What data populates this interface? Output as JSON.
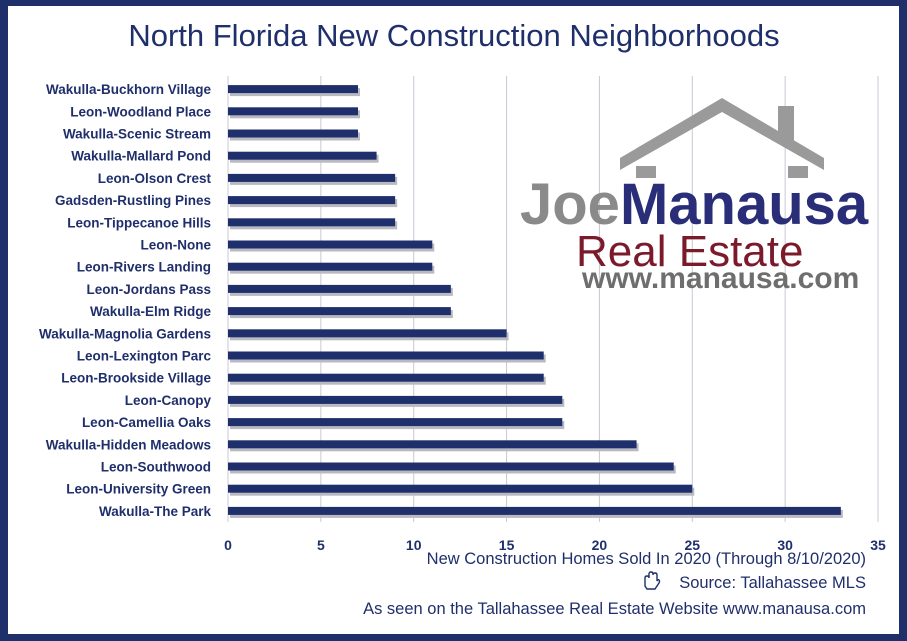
{
  "chart_data": {
    "type": "bar",
    "orientation": "horizontal",
    "title": "North Florida New Construction Neighborhoods",
    "categories": [
      "Wakulla-Buckhorn Village",
      "Leon-Woodland Place",
      "Wakulla-Scenic Stream",
      "Wakulla-Mallard Pond",
      "Leon-Olson Crest",
      "Gadsden-Rustling Pines",
      "Leon-Tippecanoe Hills",
      "Leon-None",
      "Leon-Rivers Landing",
      "Leon-Jordans Pass",
      "Wakulla-Elm Ridge",
      "Wakulla-Magnolia Gardens",
      "Leon-Lexington Parc",
      "Leon-Brookside Village",
      "Leon-Canopy",
      "Leon-Camellia Oaks",
      "Wakulla-Hidden Meadows",
      "Leon-Southwood",
      "Leon-University Green",
      "Wakulla-The Park"
    ],
    "values": [
      7,
      7,
      7,
      8,
      9,
      9,
      9,
      11,
      11,
      12,
      12,
      15,
      17,
      17,
      18,
      18,
      22,
      24,
      25,
      33
    ],
    "xlabel": "New Construction Homes Sold In 2020 (Through 8/10/2020)",
    "xlim": [
      0,
      35
    ],
    "xticks": [
      "0",
      "5",
      "10",
      "15",
      "20",
      "25",
      "30",
      "35"
    ],
    "grid": true,
    "bar_color": "#1f2f6b"
  },
  "footer": {
    "source": "Source: Tallahassee MLS",
    "seen_on": "As seen on the Tallahassee Real Estate Website www.manausa.com"
  },
  "logo": {
    "joe": "Joe",
    "manausa": "Manausa",
    "real_estate": "Real Estate",
    "url": "www.manausa.com"
  },
  "colors": {
    "border": "#1f2f6b",
    "text": "#1f2f6b",
    "grid": "#c8c8d4"
  },
  "icons": {
    "source": "hand-icon"
  }
}
